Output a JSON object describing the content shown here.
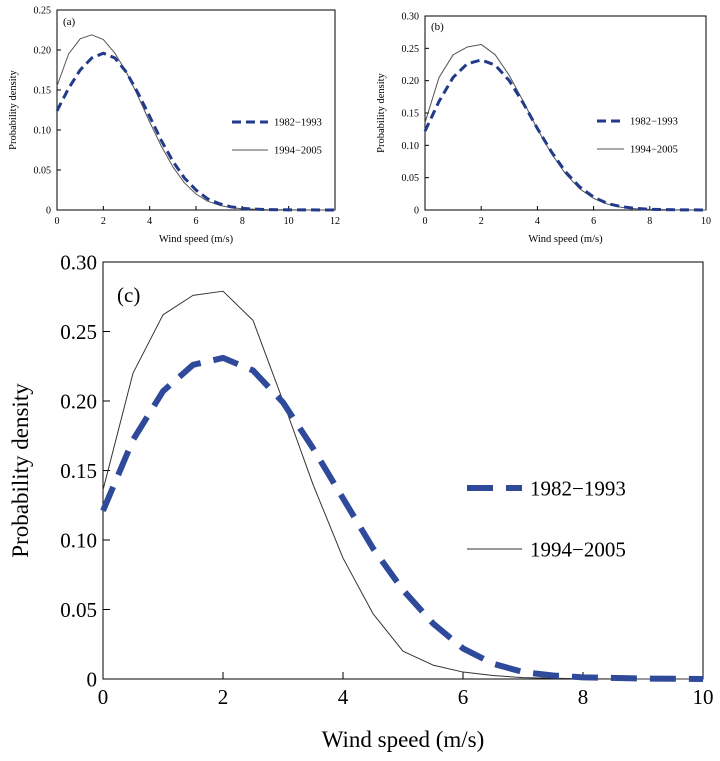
{
  "chart_data": [
    {
      "type": "line",
      "panel_label": "(a)",
      "xlabel": "Wind speed (m/s)",
      "ylabel": "Probability density",
      "xlim": [
        0,
        12
      ],
      "ylim": [
        0,
        0.25
      ],
      "x_ticks": [
        0,
        2,
        4,
        6,
        8,
        10,
        12
      ],
      "y_ticks": [
        0,
        0.05,
        0.1,
        0.15,
        0.2,
        0.25
      ],
      "x_tick_labels": [
        "0",
        "2",
        "4",
        "6",
        "8",
        "10",
        "12"
      ],
      "y_tick_labels": [
        "0",
        "0.05",
        "0.10",
        "0.15",
        "0.20",
        "0.25"
      ],
      "legend_position": "right",
      "series": [
        {
          "name": "1982−1993",
          "style": "dashed",
          "color": "#223a8a",
          "x": [
            0,
            0.5,
            1,
            1.5,
            2,
            2.5,
            3,
            3.5,
            4,
            4.5,
            5,
            5.5,
            6,
            6.5,
            7,
            7.5,
            8,
            8.5,
            9,
            10,
            11,
            12
          ],
          "y": [
            0.124,
            0.152,
            0.175,
            0.19,
            0.196,
            0.19,
            0.172,
            0.146,
            0.117,
            0.087,
            0.061,
            0.04,
            0.025,
            0.014,
            0.008,
            0.004,
            0.002,
            0.0012,
            0.0006,
            0.0002,
            0.0001,
            0.0
          ]
        },
        {
          "name": "1994−2005",
          "style": "solid",
          "color": "#555555",
          "x": [
            0,
            0.5,
            1,
            1.5,
            2,
            2.5,
            3,
            3.5,
            4,
            4.5,
            5,
            5.5,
            6,
            6.5,
            7,
            7.5,
            8,
            9,
            10,
            11,
            12
          ],
          "y": [
            0.155,
            0.195,
            0.214,
            0.219,
            0.213,
            0.196,
            0.172,
            0.142,
            0.11,
            0.08,
            0.054,
            0.034,
            0.02,
            0.011,
            0.006,
            0.003,
            0.0015,
            0.0005,
            0.0001,
            0.0,
            0.0
          ]
        }
      ]
    },
    {
      "type": "line",
      "panel_label": "(b)",
      "xlabel": "Wind speed (m/s)",
      "ylabel": "Probability density",
      "xlim": [
        0,
        10
      ],
      "ylim": [
        0,
        0.3
      ],
      "x_ticks": [
        0,
        2,
        4,
        6,
        8,
        10
      ],
      "y_ticks": [
        0,
        0.05,
        0.1,
        0.15,
        0.2,
        0.25,
        0.3
      ],
      "x_tick_labels": [
        "0",
        "2",
        "4",
        "6",
        "8",
        "10"
      ],
      "y_tick_labels": [
        "0",
        "0.05",
        "0.10",
        "0.15",
        "0.20",
        "0.25",
        "0.30"
      ],
      "legend_position": "right",
      "series": [
        {
          "name": "1982−1993",
          "style": "dashed",
          "color": "#223a8a",
          "x": [
            0,
            0.5,
            1,
            1.5,
            2,
            2.5,
            3,
            3.5,
            4,
            4.5,
            5,
            5.5,
            6,
            6.5,
            7,
            7.5,
            8,
            9,
            10
          ],
          "y": [
            0.122,
            0.168,
            0.205,
            0.226,
            0.232,
            0.224,
            0.2,
            0.165,
            0.126,
            0.09,
            0.059,
            0.036,
            0.02,
            0.01,
            0.005,
            0.0025,
            0.001,
            0.0003,
            0.0
          ]
        },
        {
          "name": "1994−2005",
          "style": "solid",
          "color": "#555555",
          "x": [
            0,
            0.5,
            1,
            1.5,
            2,
            2.5,
            3,
            3.5,
            4,
            4.5,
            5,
            5.5,
            6,
            6.5,
            7,
            7.5,
            8,
            9,
            10
          ],
          "y": [
            0.135,
            0.205,
            0.24,
            0.252,
            0.256,
            0.24,
            0.208,
            0.168,
            0.125,
            0.087,
            0.056,
            0.033,
            0.018,
            0.009,
            0.004,
            0.002,
            0.001,
            0.0002,
            0.0
          ]
        }
      ]
    },
    {
      "type": "line",
      "panel_label": "(c)",
      "xlabel": "Wind speed (m/s)",
      "ylabel": "Probability density",
      "xlim": [
        0,
        10
      ],
      "ylim": [
        0,
        0.3
      ],
      "x_ticks": [
        0,
        2,
        4,
        6,
        8,
        10
      ],
      "y_ticks": [
        0,
        0.05,
        0.1,
        0.15,
        0.2,
        0.25,
        0.3
      ],
      "x_tick_labels": [
        "0",
        "2",
        "4",
        "6",
        "8",
        "10"
      ],
      "y_tick_labels": [
        "0",
        "0.05",
        "0.10",
        "0.15",
        "0.20",
        "0.25",
        "0.30"
      ],
      "legend_position": "right",
      "series": [
        {
          "name": "1982−1993",
          "style": "dashed",
          "color": "#2f4a9a",
          "x": [
            0,
            0.5,
            1,
            1.5,
            2,
            2.5,
            3,
            3.5,
            4,
            4.5,
            5,
            5.5,
            6,
            6.5,
            7,
            7.5,
            8,
            9,
            10
          ],
          "y": [
            0.121,
            0.172,
            0.207,
            0.226,
            0.231,
            0.222,
            0.199,
            0.166,
            0.13,
            0.094,
            0.064,
            0.04,
            0.022,
            0.011,
            0.005,
            0.0025,
            0.0012,
            0.0003,
            0.0
          ]
        },
        {
          "name": "1994−2005",
          "style": "solid",
          "color": "#333333",
          "x": [
            0,
            0.5,
            1,
            1.5,
            2,
            2.5,
            3,
            3.5,
            4,
            4.5,
            5,
            5.5,
            6,
            6.5,
            7,
            7.5,
            8,
            9,
            10
          ],
          "y": [
            0.136,
            0.22,
            0.262,
            0.276,
            0.279,
            0.258,
            0.2,
            0.14,
            0.087,
            0.047,
            0.02,
            0.01,
            0.005,
            0.0025,
            0.001,
            0.0005,
            0.0002,
            0.0,
            0.0
          ]
        }
      ]
    }
  ]
}
